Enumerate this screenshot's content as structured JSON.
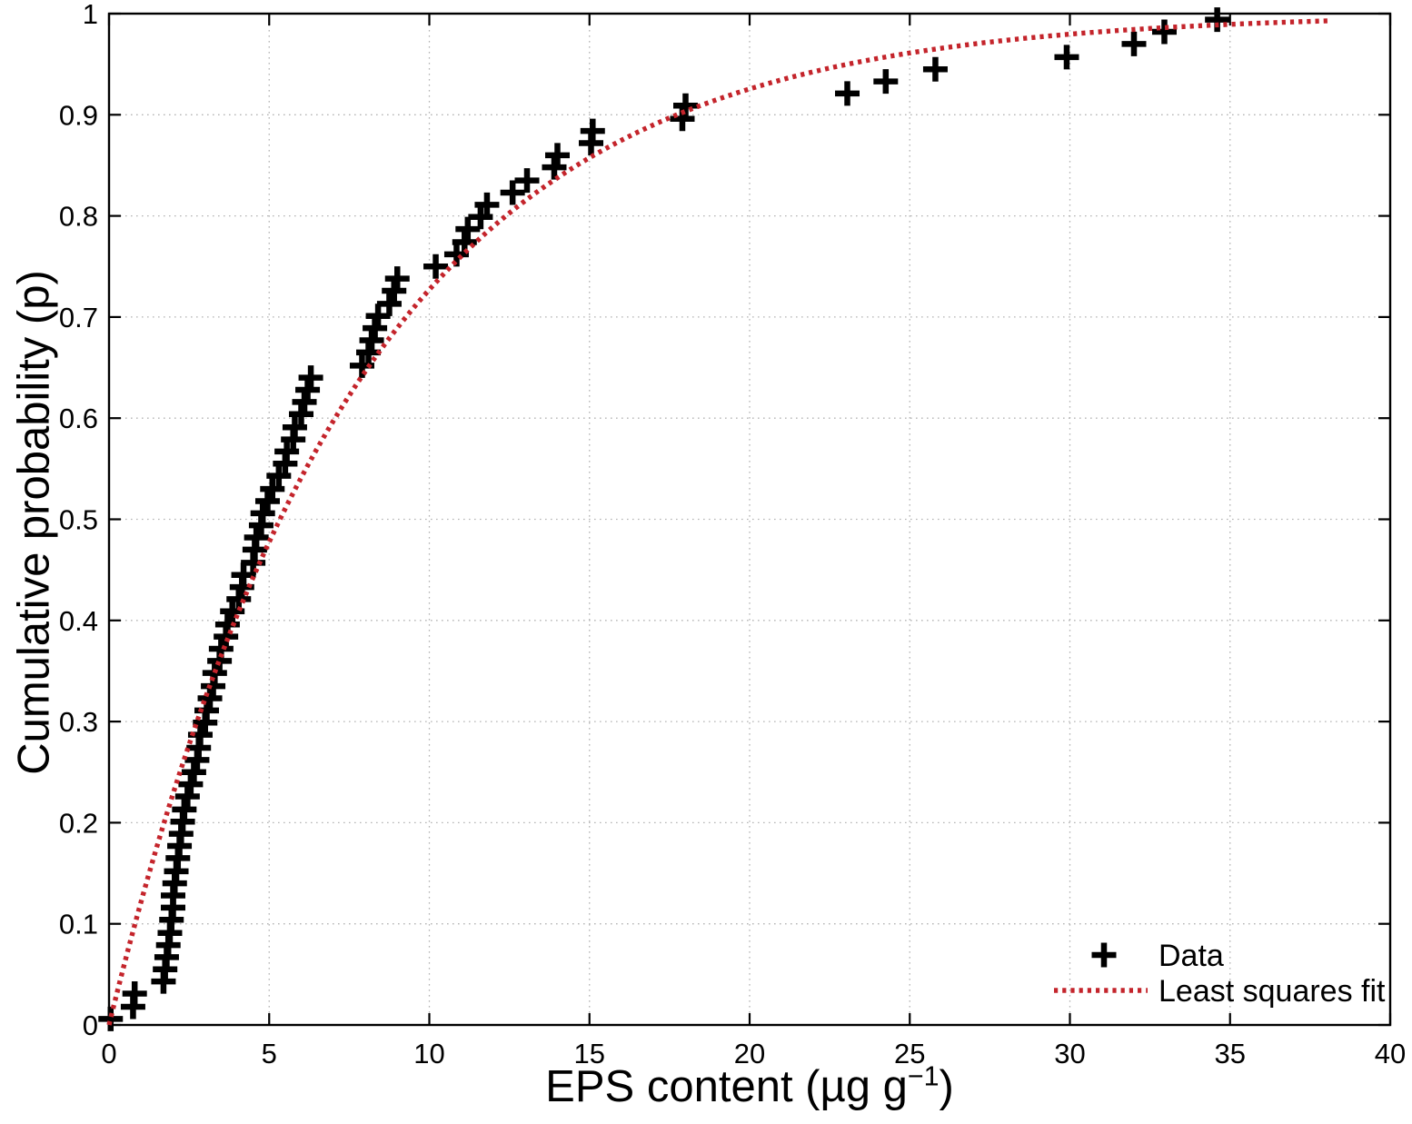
{
  "chart_data": {
    "type": "scatter",
    "title": "",
    "xlabel": {
      "prefix": "EPS content (µg g",
      "superscript": "−1",
      "suffix": ")"
    },
    "ylabel": "Cumulative probability (p)",
    "xlim": [
      0,
      40
    ],
    "ylim": [
      0,
      1
    ],
    "xticks": [
      0,
      5,
      10,
      15,
      20,
      25,
      30,
      35,
      40
    ],
    "yticks": [
      0,
      0.1,
      0.2,
      0.3,
      0.4,
      0.5,
      0.6,
      0.7,
      0.8,
      0.9,
      1
    ],
    "grid": true,
    "grid_style": "dotted",
    "grid_color": "#b4b4b4",
    "axis_color": "#000000",
    "background_color": "#ffffff",
    "series": [
      {
        "name": "Data",
        "type": "scatter",
        "marker": "plus",
        "color": "#000000",
        "points": [
          [
            0.05,
            0.006
          ],
          [
            0.75,
            0.018
          ],
          [
            0.8,
            0.031
          ],
          [
            1.7,
            0.043
          ],
          [
            1.75,
            0.055
          ],
          [
            1.8,
            0.067
          ],
          [
            1.85,
            0.079
          ],
          [
            1.9,
            0.091
          ],
          [
            1.95,
            0.104
          ],
          [
            2.0,
            0.116
          ],
          [
            2.0,
            0.128
          ],
          [
            2.05,
            0.14
          ],
          [
            2.1,
            0.152
          ],
          [
            2.15,
            0.165
          ],
          [
            2.2,
            0.177
          ],
          [
            2.25,
            0.189
          ],
          [
            2.3,
            0.201
          ],
          [
            2.35,
            0.213
          ],
          [
            2.45,
            0.226
          ],
          [
            2.55,
            0.238
          ],
          [
            2.65,
            0.25
          ],
          [
            2.75,
            0.262
          ],
          [
            2.8,
            0.274
          ],
          [
            2.85,
            0.287
          ],
          [
            3.0,
            0.299
          ],
          [
            3.05,
            0.311
          ],
          [
            3.15,
            0.323
          ],
          [
            3.25,
            0.335
          ],
          [
            3.3,
            0.348
          ],
          [
            3.45,
            0.36
          ],
          [
            3.5,
            0.372
          ],
          [
            3.65,
            0.384
          ],
          [
            3.7,
            0.396
          ],
          [
            3.85,
            0.409
          ],
          [
            4.05,
            0.421
          ],
          [
            4.15,
            0.433
          ],
          [
            4.2,
            0.445
          ],
          [
            4.5,
            0.457
          ],
          [
            4.55,
            0.47
          ],
          [
            4.6,
            0.482
          ],
          [
            4.75,
            0.494
          ],
          [
            4.8,
            0.506
          ],
          [
            4.95,
            0.518
          ],
          [
            5.1,
            0.53
          ],
          [
            5.3,
            0.543
          ],
          [
            5.5,
            0.555
          ],
          [
            5.55,
            0.567
          ],
          [
            5.75,
            0.579
          ],
          [
            5.8,
            0.591
          ],
          [
            6.0,
            0.604
          ],
          [
            6.1,
            0.616
          ],
          [
            6.2,
            0.628
          ],
          [
            6.3,
            0.64
          ],
          [
            7.9,
            0.652
          ],
          [
            8.1,
            0.665
          ],
          [
            8.2,
            0.677
          ],
          [
            8.3,
            0.689
          ],
          [
            8.4,
            0.701
          ],
          [
            8.75,
            0.713
          ],
          [
            8.9,
            0.726
          ],
          [
            9.0,
            0.738
          ],
          [
            10.2,
            0.75
          ],
          [
            10.85,
            0.762
          ],
          [
            11.1,
            0.774
          ],
          [
            11.2,
            0.787
          ],
          [
            11.6,
            0.799
          ],
          [
            11.8,
            0.811
          ],
          [
            12.6,
            0.823
          ],
          [
            13.05,
            0.835
          ],
          [
            13.9,
            0.848
          ],
          [
            14.0,
            0.86
          ],
          [
            15.05,
            0.872
          ],
          [
            15.1,
            0.884
          ],
          [
            17.9,
            0.896
          ],
          [
            18.0,
            0.909
          ],
          [
            23.05,
            0.921
          ],
          [
            24.25,
            0.933
          ],
          [
            25.8,
            0.945
          ],
          [
            29.9,
            0.957
          ],
          [
            32.0,
            0.97
          ],
          [
            32.95,
            0.982
          ],
          [
            34.6,
            0.994
          ]
        ]
      },
      {
        "name": "Least squares fit",
        "type": "line",
        "line_style": "dotted",
        "color": "#c4242b",
        "equation": "p = 1 - exp(-x / 7.7)",
        "lambda": 7.7,
        "x_start": 0,
        "x_end": 38.1
      }
    ],
    "legend": {
      "position": "bottom-right",
      "border": "none",
      "items": [
        {
          "label": "Data",
          "marker": "plus",
          "color": "#000000"
        },
        {
          "label": "Least squares fit",
          "marker": "dotted-line",
          "color": "#c4242b"
        }
      ]
    }
  }
}
